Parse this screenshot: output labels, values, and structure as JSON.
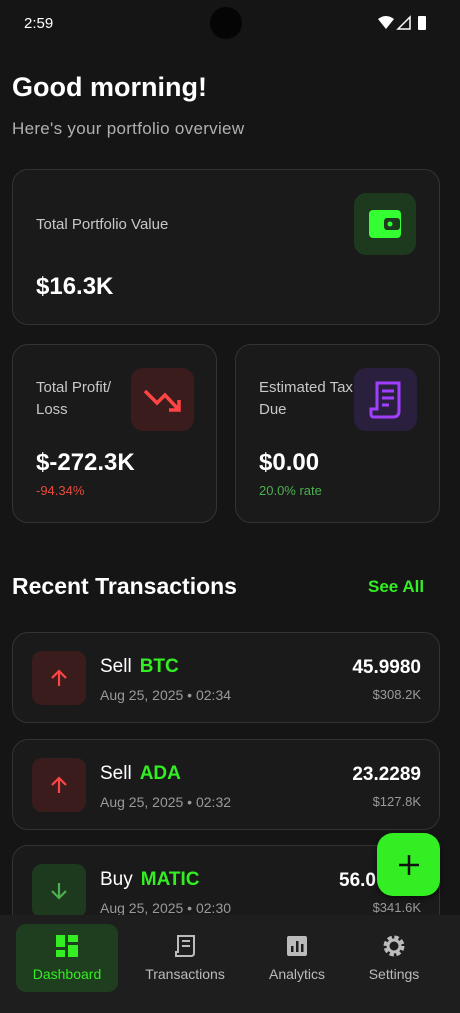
{
  "status_bar": {
    "time": "2:59"
  },
  "header": {
    "title": "Good morning!",
    "subtitle": "Here's your portfolio overview"
  },
  "cards": {
    "portfolio": {
      "label": "Total Portfolio Value",
      "value": "$16.3K"
    },
    "profit": {
      "label": "Total Profit/ Loss",
      "value": "$-272.3K",
      "sub": "-94.34%"
    },
    "tax": {
      "label": "Estimated Tax Due",
      "value": "$0.00",
      "sub": "20.0% rate"
    }
  },
  "section": {
    "title": "Recent Transactions",
    "link": "See All"
  },
  "transactions": [
    {
      "type": "Sell",
      "asset": "BTC",
      "date": "Aug 25, 2025 • 02:34",
      "amount": "45.9980",
      "value": "$308.2K"
    },
    {
      "type": "Sell",
      "asset": "ADA",
      "date": "Aug 25, 2025 • 02:32",
      "amount": "23.2289",
      "value": "$127.8K"
    },
    {
      "type": "Buy",
      "asset": "MATIC",
      "date": "Aug 25, 2025 • 02:30",
      "amount": "56.0",
      "value": "$341.6K"
    }
  ],
  "nav": [
    "Dashboard",
    "Transactions",
    "Analytics",
    "Settings"
  ]
}
